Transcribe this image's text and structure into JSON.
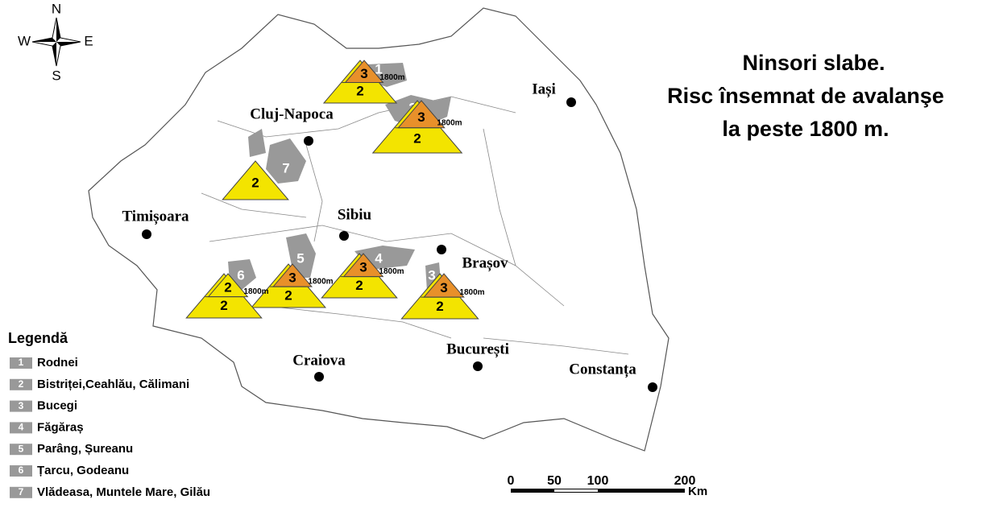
{
  "title_lines": [
    "Ninsori slabe.",
    "Risc însemnat  de avalanşe",
    "la peste 1800 m."
  ],
  "compass": {
    "n": "N",
    "w": "W",
    "e": "E",
    "s": "S"
  },
  "cities": [
    "Cluj-Napoca",
    "Iași",
    "Timișoara",
    "Sibiu",
    "Brașov",
    "Craiova",
    "București",
    "Constanța"
  ],
  "legend": {
    "title": "Legendă",
    "items": [
      {
        "number": 1,
        "label": "Rodnei"
      },
      {
        "number": 2,
        "label": "Bistriței,Ceahlău, Călimani"
      },
      {
        "number": 3,
        "label": "Bucegi"
      },
      {
        "number": 4,
        "label": "Făgăraș"
      },
      {
        "number": 5,
        "label": "Parâng, Șureanu"
      },
      {
        "number": 6,
        "label": "Țarcu, Godeanu"
      },
      {
        "number": 7,
        "label": "Vlădeasa, Muntele Mare, Gilău"
      }
    ]
  },
  "warnings": [
    {
      "upper": 3,
      "lower": 2,
      "altitude": "1800m"
    },
    {
      "upper": 3,
      "lower": 2,
      "altitude": "1800m"
    },
    {
      "upper": 3,
      "lower": 2,
      "altitude": "1800m"
    },
    {
      "upper": 3,
      "lower": 2,
      "altitude": "1800m"
    },
    {
      "upper": 3,
      "lower": 2,
      "altitude": "1800m"
    },
    {
      "upper": 2,
      "lower": 2,
      "altitude": "1800m"
    },
    {
      "lower": 2
    }
  ],
  "scale": {
    "labels": [
      0,
      50,
      100,
      200
    ],
    "unit": "Km"
  }
}
